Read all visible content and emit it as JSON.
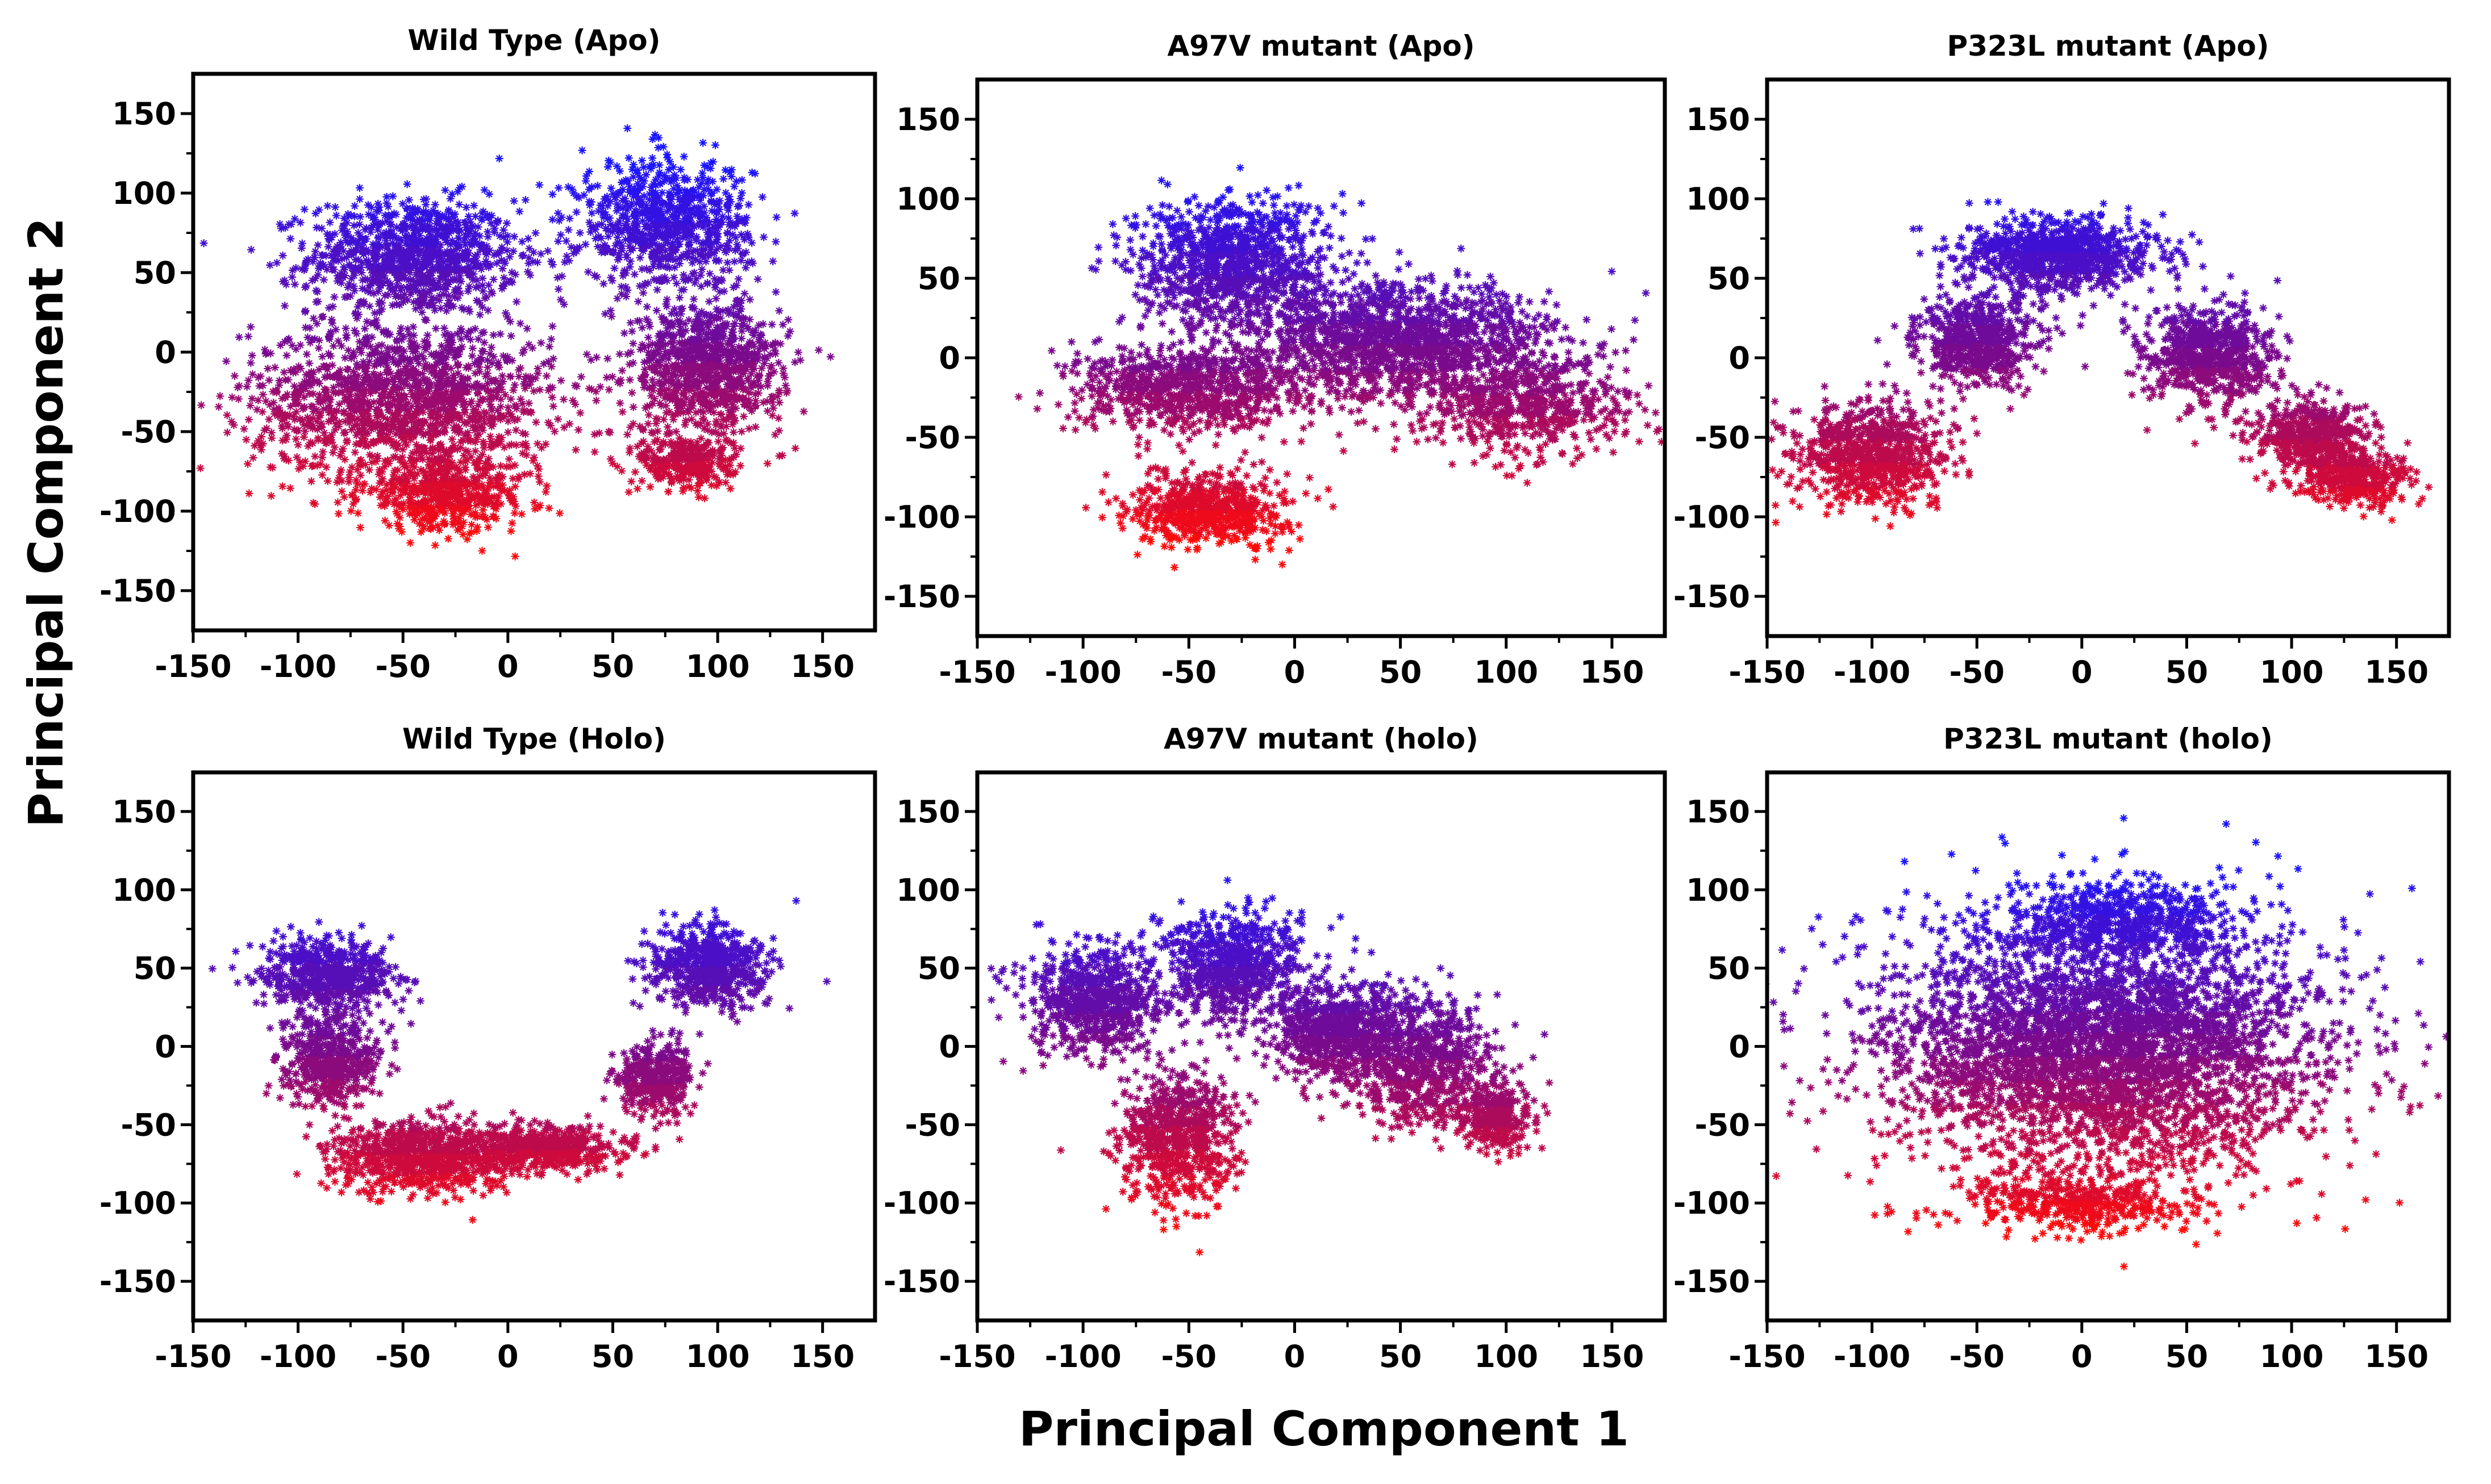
{
  "figure": {
    "xlabel": "Principal Component 1",
    "ylabel": "Principal Component 2",
    "colors": {
      "top": "#1a14ff",
      "middle": "#7a0a8c",
      "bottom": "#ff0a0a",
      "axis": "#000000"
    }
  },
  "chart_data": [
    {
      "type": "scatter",
      "marker": "asterisk",
      "title": "Wild Type (Apo)",
      "xlim": [
        -150,
        175
      ],
      "ylim": [
        -175,
        175
      ],
      "xticks": [
        -150,
        -100,
        -50,
        0,
        50,
        100,
        150
      ],
      "yticks": [
        -150,
        -100,
        -50,
        0,
        50,
        100,
        150
      ],
      "color_by": "y",
      "clusters": [
        {
          "cx": -45,
          "cy": 60,
          "rx": 55,
          "ry": 40,
          "n": 1000
        },
        {
          "cx": -50,
          "cy": -30,
          "rx": 80,
          "ry": 55,
          "n": 1500
        },
        {
          "cx": -30,
          "cy": -90,
          "rx": 45,
          "ry": 25,
          "n": 500
        },
        {
          "cx": 75,
          "cy": 80,
          "rx": 45,
          "ry": 45,
          "n": 800
        },
        {
          "cx": 95,
          "cy": -10,
          "rx": 40,
          "ry": 45,
          "n": 900
        },
        {
          "cx": 85,
          "cy": -70,
          "rx": 25,
          "ry": 20,
          "n": 300
        }
      ]
    },
    {
      "type": "scatter",
      "marker": "asterisk",
      "title": "A97V mutant (Apo)",
      "xlim": [
        -150,
        175
      ],
      "ylim": [
        -175,
        175
      ],
      "xticks": [
        -150,
        -100,
        -50,
        0,
        50,
        100,
        150
      ],
      "yticks": [
        -150,
        -100,
        -50,
        0,
        50,
        100,
        150
      ],
      "color_by": "y",
      "clusters": [
        {
          "cx": -30,
          "cy": 60,
          "rx": 50,
          "ry": 45,
          "n": 1000
        },
        {
          "cx": -50,
          "cy": -20,
          "rx": 60,
          "ry": 30,
          "n": 800
        },
        {
          "cx": -40,
          "cy": -95,
          "rx": 40,
          "ry": 25,
          "n": 600
        },
        {
          "cx": 50,
          "cy": 10,
          "rx": 80,
          "ry": 40,
          "n": 1500
        },
        {
          "cx": 110,
          "cy": -30,
          "rx": 55,
          "ry": 35,
          "n": 600
        }
      ]
    },
    {
      "type": "scatter",
      "marker": "asterisk",
      "title": "P323L mutant (Apo)",
      "xlim": [
        -150,
        175
      ],
      "ylim": [
        -175,
        175
      ],
      "xticks": [
        -150,
        -100,
        -50,
        0,
        50,
        100,
        150
      ],
      "yticks": [
        -150,
        -100,
        -50,
        0,
        50,
        100,
        150
      ],
      "color_by": "y",
      "clusters": [
        {
          "cx": -10,
          "cy": 65,
          "rx": 50,
          "ry": 25,
          "n": 900
        },
        {
          "cx": -50,
          "cy": 10,
          "rx": 30,
          "ry": 30,
          "n": 600
        },
        {
          "cx": -100,
          "cy": -60,
          "rx": 40,
          "ry": 35,
          "n": 800
        },
        {
          "cx": 60,
          "cy": 0,
          "rx": 35,
          "ry": 35,
          "n": 700
        },
        {
          "cx": 110,
          "cy": -50,
          "rx": 30,
          "ry": 25,
          "n": 500
        },
        {
          "cx": 130,
          "cy": -75,
          "rx": 30,
          "ry": 20,
          "n": 400
        }
      ]
    },
    {
      "type": "scatter",
      "marker": "asterisk",
      "title": "Wild Type (Holo)",
      "xlim": [
        -150,
        175
      ],
      "ylim": [
        -175,
        175
      ],
      "xticks": [
        -150,
        -100,
        -50,
        0,
        50,
        100,
        150
      ],
      "yticks": [
        -150,
        -100,
        -50,
        0,
        50,
        100,
        150
      ],
      "color_by": "y",
      "clusters": [
        {
          "cx": -85,
          "cy": 45,
          "rx": 35,
          "ry": 25,
          "n": 600
        },
        {
          "cx": -85,
          "cy": -10,
          "rx": 25,
          "ry": 30,
          "n": 500
        },
        {
          "cx": -40,
          "cy": -70,
          "rx": 50,
          "ry": 25,
          "n": 800
        },
        {
          "cx": 20,
          "cy": -65,
          "rx": 40,
          "ry": 15,
          "n": 500
        },
        {
          "cx": 70,
          "cy": -20,
          "rx": 20,
          "ry": 25,
          "n": 400
        },
        {
          "cx": 95,
          "cy": 50,
          "rx": 30,
          "ry": 30,
          "n": 600
        }
      ]
    },
    {
      "type": "scatter",
      "marker": "asterisk",
      "title": "A97V mutant (holo)",
      "xlim": [
        -150,
        175
      ],
      "ylim": [
        -175,
        175
      ],
      "xticks": [
        -150,
        -100,
        -50,
        0,
        50,
        100,
        150
      ],
      "yticks": [
        -150,
        -100,
        -50,
        0,
        50,
        100,
        150
      ],
      "color_by": "y",
      "clusters": [
        {
          "cx": -95,
          "cy": 30,
          "rx": 35,
          "ry": 40,
          "n": 700
        },
        {
          "cx": -55,
          "cy": -60,
          "rx": 30,
          "ry": 45,
          "n": 700
        },
        {
          "cx": -30,
          "cy": 50,
          "rx": 35,
          "ry": 40,
          "n": 700
        },
        {
          "cx": 20,
          "cy": 10,
          "rx": 35,
          "ry": 35,
          "n": 700
        },
        {
          "cx": 60,
          "cy": -10,
          "rx": 35,
          "ry": 45,
          "n": 700
        },
        {
          "cx": 95,
          "cy": -45,
          "rx": 20,
          "ry": 25,
          "n": 300
        }
      ]
    },
    {
      "type": "scatter",
      "marker": "asterisk",
      "title": "P323L mutant (holo)",
      "xlim": [
        -150,
        175
      ],
      "ylim": [
        -175,
        175
      ],
      "xticks": [
        -150,
        -100,
        -50,
        0,
        50,
        100,
        150
      ],
      "yticks": [
        -150,
        -100,
        -50,
        0,
        50,
        100,
        150
      ],
      "color_by": "y",
      "clusters": [
        {
          "cx": 10,
          "cy": 0,
          "rx": 115,
          "ry": 90,
          "n": 4000
        },
        {
          "cx": 20,
          "cy": 80,
          "rx": 60,
          "ry": 25,
          "n": 500
        },
        {
          "cx": 0,
          "cy": -100,
          "rx": 60,
          "ry": 20,
          "n": 400
        }
      ]
    }
  ]
}
